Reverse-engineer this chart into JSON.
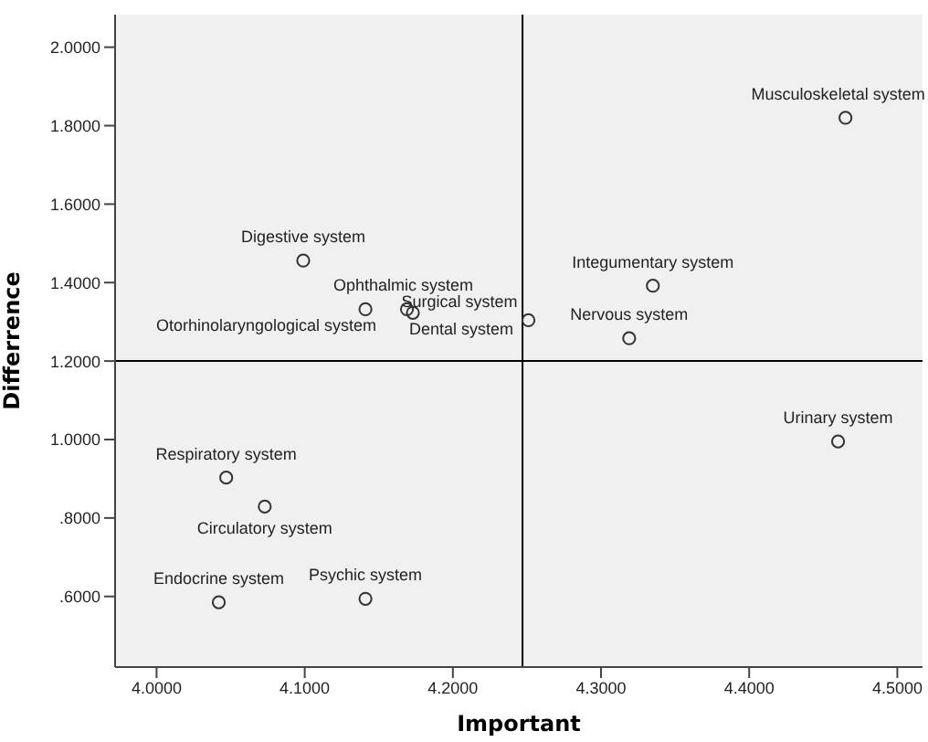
{
  "chart_data": {
    "type": "scatter",
    "xlabel": "Important",
    "ylabel": "Differrence",
    "xlim": [
      3.972,
      4.517
    ],
    "ylim": [
      0.42,
      2.083
    ],
    "xticks": [
      {
        "value": 4.0,
        "label": "4.0000"
      },
      {
        "value": 4.1,
        "label": "4.1000"
      },
      {
        "value": 4.2,
        "label": "4.2000"
      },
      {
        "value": 4.3,
        "label": "4.3000"
      },
      {
        "value": 4.4,
        "label": "4.4000"
      },
      {
        "value": 4.5,
        "label": "4.5000"
      }
    ],
    "yticks": [
      {
        "value": 0.6,
        "label": ".6000"
      },
      {
        "value": 0.8,
        "label": ".8000"
      },
      {
        "value": 1.0,
        "label": "1.0000"
      },
      {
        "value": 1.2,
        "label": "1.2000"
      },
      {
        "value": 1.4,
        "label": "1.4000"
      },
      {
        "value": 1.6,
        "label": "1.6000"
      },
      {
        "value": 1.8,
        "label": "1.8000"
      },
      {
        "value": 2.0,
        "label": "2.0000"
      }
    ],
    "marker": "circle",
    "series": [
      {
        "color": "#333333",
        "x": [
          4.465,
          4.099,
          4.141,
          4.169,
          4.173,
          4.251,
          4.335,
          4.319,
          4.46,
          4.047,
          4.073,
          4.042,
          4.141
        ],
        "values": [
          1.82,
          1.456,
          1.332,
          1.332,
          1.323,
          1.304,
          1.392,
          1.258,
          0.995,
          0.903,
          0.829,
          0.585,
          0.594
        ]
      }
    ],
    "ref_lines": [
      {
        "axis": "x",
        "value": 4.247,
        "color": "#000000"
      },
      {
        "axis": "y",
        "value": 1.2,
        "color": "#000000"
      }
    ],
    "annotations": [
      {
        "text": "Musculoskeletal system",
        "x": 4.465,
        "y": 1.82
      },
      {
        "text": "Digestive system",
        "x": 4.099,
        "y": 1.456
      },
      {
        "text": "Otorhinolaryngological system",
        "x": 4.141,
        "y": 1.332
      },
      {
        "text": "Ophthalmic system",
        "x": 4.169,
        "y": 1.332
      },
      {
        "text": "Dental system",
        "x": 4.173,
        "y": 1.323
      },
      {
        "text": "Surgical system",
        "x": 4.251,
        "y": 1.304
      },
      {
        "text": "Integumentary system",
        "x": 4.335,
        "y": 1.392
      },
      {
        "text": "Nervous system",
        "x": 4.319,
        "y": 1.258
      },
      {
        "text": "Urinary system",
        "x": 4.46,
        "y": 0.995
      },
      {
        "text": "Respiratory system",
        "x": 4.047,
        "y": 0.903
      },
      {
        "text": "Circulatory system",
        "x": 4.073,
        "y": 0.829
      },
      {
        "text": "Endocrine system",
        "x": 4.042,
        "y": 0.585
      },
      {
        "text": "Psychic system",
        "x": 4.141,
        "y": 0.594
      }
    ]
  }
}
